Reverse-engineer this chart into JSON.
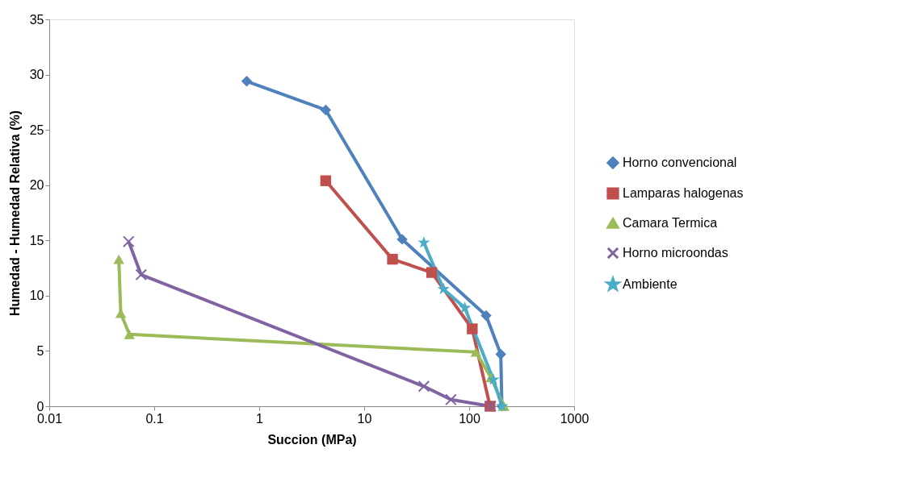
{
  "chart_data": {
    "type": "line",
    "xlabel": "Succion (MPa)",
    "ylabel": "Humedad - Humedad Relativa (%)",
    "log": "x",
    "xlim": [
      0.01,
      1000
    ],
    "xticks": [
      0.01,
      0.1,
      1,
      10,
      100,
      1000
    ],
    "ylim": [
      0,
      35
    ],
    "yticks": [
      0,
      5,
      10,
      15,
      20,
      25,
      30,
      35
    ],
    "grid": false,
    "legend": "right",
    "series": [
      {
        "name": "Horno convencional",
        "color": "#4f81bd",
        "marker": "diamond",
        "x": [
          0.76,
          4.3,
          23,
          145,
          200,
          205
        ],
        "values": [
          29.4,
          26.8,
          15.1,
          8.2,
          4.7,
          0
        ]
      },
      {
        "name": "Lamparas halogenas",
        "color": "#c0504d",
        "marker": "square",
        "x": [
          4.3,
          18.6,
          44,
          107,
          158
        ],
        "values": [
          20.4,
          13.3,
          12.1,
          7.0,
          0
        ]
      },
      {
        "name": "Camara Termica",
        "color": "#9bbb59",
        "marker": "triangle",
        "x": [
          0.046,
          0.048,
          0.058,
          116,
          161,
          215
        ],
        "values": [
          13.3,
          8.4,
          6.5,
          4.9,
          2.6,
          0
        ]
      },
      {
        "name": "Horno microondas",
        "color": "#8064a2",
        "marker": "cross",
        "x": [
          0.057,
          0.075,
          37,
          67,
          160
        ],
        "values": [
          14.9,
          11.9,
          1.8,
          0.6,
          0
        ]
      },
      {
        "name": "Ambiente",
        "color": "#4bacc6",
        "marker": "star",
        "x": [
          37,
          57,
          91,
          170,
          205
        ],
        "values": [
          14.8,
          10.6,
          8.9,
          2.4,
          0
        ]
      }
    ]
  }
}
